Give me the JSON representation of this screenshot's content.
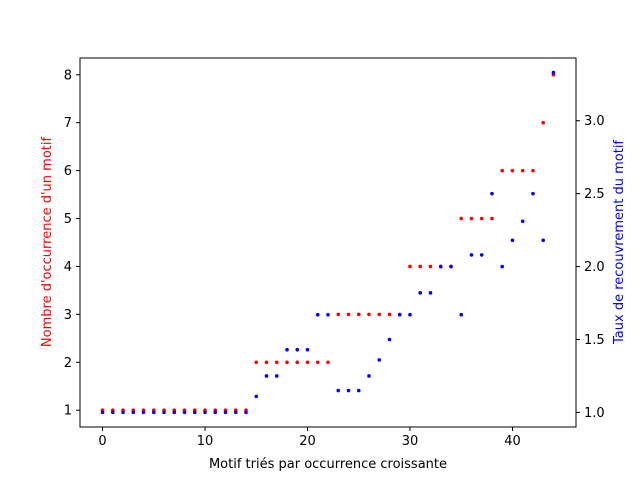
{
  "chart_data": {
    "type": "scatter",
    "xlabel": "Motif triés par occurrence croissante",
    "ylabel_left": "Nombre d'occurrence d'un motif",
    "ylabel_right": "Taux de recouvrement du motif",
    "xlim": [
      -2.2,
      46.2
    ],
    "ylim_left": [
      0.65,
      8.35
    ],
    "ylim_right": [
      0.9,
      3.43
    ],
    "xticks": [
      0,
      10,
      20,
      30,
      40
    ],
    "yticks_left": [
      1,
      2,
      3,
      4,
      5,
      6,
      7,
      8
    ],
    "yticks_right": [
      1.0,
      1.5,
      2.0,
      2.5,
      3.0
    ],
    "yticks_right_labels": [
      "1.0",
      "1.5",
      "2.0",
      "2.5",
      "3.0"
    ],
    "colors": {
      "left": "#ff0000",
      "right": "#0000ff"
    },
    "series": [
      {
        "axis": "left",
        "color": "#ff0000",
        "x": [
          0,
          1,
          2,
          3,
          4,
          5,
          6,
          7,
          8,
          9,
          10,
          11,
          12,
          13,
          14,
          15,
          16,
          17,
          18,
          19,
          20,
          21,
          22,
          23,
          24,
          25,
          26,
          27,
          28,
          29,
          30,
          31,
          32,
          33,
          34,
          35,
          36,
          37,
          38,
          39,
          40,
          41,
          42,
          43,
          44
        ],
        "y": [
          1,
          1,
          1,
          1,
          1,
          1,
          1,
          1,
          1,
          1,
          1,
          1,
          1,
          1,
          1,
          2,
          2,
          2,
          2,
          2,
          2,
          2,
          2,
          3,
          3,
          3,
          3,
          3,
          3,
          3,
          4,
          4,
          4,
          4,
          4,
          5,
          5,
          5,
          5,
          6,
          6,
          6,
          6,
          7,
          8
        ]
      },
      {
        "axis": "right",
        "color": "#0000ff",
        "x": [
          0,
          1,
          2,
          3,
          4,
          5,
          6,
          7,
          8,
          9,
          10,
          11,
          12,
          13,
          14,
          15,
          16,
          17,
          18,
          19,
          20,
          21,
          22,
          23,
          24,
          25,
          26,
          27,
          28,
          29,
          30,
          31,
          32,
          33,
          34,
          35,
          36,
          37,
          38,
          39,
          40,
          41,
          42,
          43,
          44
        ],
        "y": [
          1.0,
          1.0,
          1.0,
          1.0,
          1.0,
          1.0,
          1.0,
          1.0,
          1.0,
          1.0,
          1.0,
          1.0,
          1.0,
          1.0,
          1.0,
          1.11,
          1.25,
          1.25,
          1.43,
          1.43,
          1.43,
          1.67,
          1.67,
          1.15,
          1.15,
          1.15,
          1.25,
          1.36,
          1.5,
          1.67,
          1.67,
          1.82,
          1.82,
          2.0,
          2.0,
          1.67,
          2.08,
          2.08,
          2.5,
          2.0,
          2.18,
          2.31,
          2.5,
          2.18,
          3.33
        ]
      }
    ]
  }
}
